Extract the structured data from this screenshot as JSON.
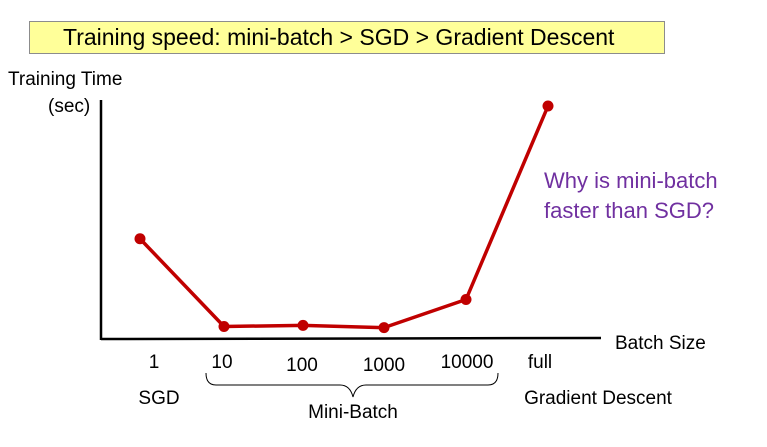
{
  "title": "Training speed: mini-batch > SGD > Gradient Descent",
  "annotation_lines": [
    "Why is mini-batch",
    "faster than SGD?"
  ],
  "colors": {
    "line": "#c00000",
    "annotation": "#7030a0",
    "title_bg": "#ffff99"
  },
  "chart_data": {
    "type": "line",
    "title": "Training speed: mini-batch > SGD > Gradient Descent",
    "xlabel": "Batch Size",
    "ylabel_lines": [
      "Training Time",
      "(sec)"
    ],
    "categories": [
      "1",
      "10",
      "100",
      "1000",
      "10000",
      "full"
    ],
    "values": [
      0.41,
      0.02,
      0.025,
      0.015,
      0.14,
      1.0
    ],
    "y_axis_ticks": false,
    "grid": false,
    "group_labels": {
      "sgd": "SGD",
      "mini_batch": "Mini-Batch",
      "gradient_descent": "Gradient Descent"
    }
  }
}
